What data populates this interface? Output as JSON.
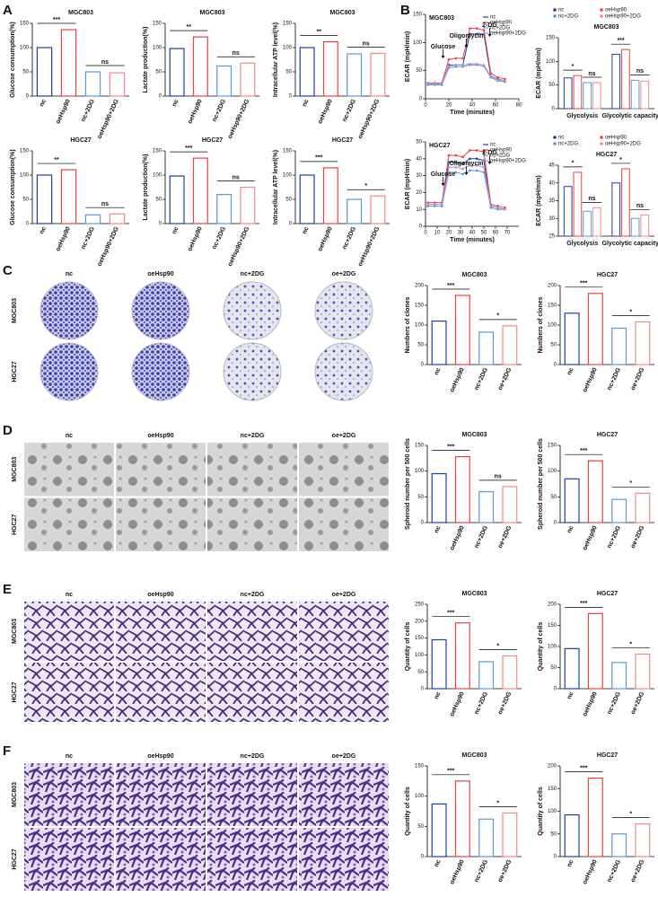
{
  "panel_letters": [
    "A",
    "B",
    "C",
    "D",
    "E",
    "F"
  ],
  "image_panels": [
    {
      "columns": [
        "nc",
        "oeHsp90",
        "nc+2DG",
        "oe+2DG"
      ],
      "rows": [
        "MGC803",
        "HGC27"
      ]
    },
    {
      "columns": [
        "nc",
        "oeHsp90",
        "nc+2DG",
        "oe+2DG"
      ],
      "rows": [
        "MGC803",
        "HGC27"
      ]
    },
    {
      "columns": [
        "nc",
        "oeHsp90",
        "nc+2DG",
        "oe+2DG"
      ],
      "rows": [
        "MGC803",
        "HGC27"
      ]
    },
    {
      "columns": [
        "nc",
        "oeHsp90",
        "nc+2DG",
        "oe+2DG"
      ],
      "rows": [
        "MGC803",
        "HGC27"
      ]
    }
  ],
  "chart_data": [
    {
      "type": "bar",
      "title": "MGC803",
      "ylabel": "Glucose consumption(%)",
      "categories": [
        "nc",
        "oeHsp90",
        "nc+2DG",
        "oeHsp90+2DG"
      ],
      "values": [
        100,
        137,
        50,
        48
      ],
      "colors": [
        "#1f3f9e",
        "#e8423f",
        "#5b9bd5",
        "#f08a8a"
      ],
      "ylim": [
        0,
        150
      ],
      "yticks": [
        0,
        50,
        100,
        150
      ],
      "significance": [
        "***",
        "ns"
      ]
    },
    {
      "type": "bar",
      "title": "MGC803",
      "ylabel": "Lactate production(%)",
      "categories": [
        "nc",
        "oeHsp90",
        "nc+2DG",
        "oeHsp90+2DG"
      ],
      "values": [
        98,
        122,
        62,
        68
      ],
      "colors": [
        "#1f3f9e",
        "#e8423f",
        "#5b9bd5",
        "#f08a8a"
      ],
      "ylim": [
        0,
        150
      ],
      "yticks": [
        0,
        50,
        100,
        150
      ],
      "significance": [
        "**",
        "ns"
      ]
    },
    {
      "type": "bar",
      "title": "MGC803",
      "ylabel": "Intracellular ATP level(%)",
      "categories": [
        "nc",
        "oeHsp90",
        "nc+2DG",
        "oeHsp90+2DG"
      ],
      "values": [
        100,
        112,
        87,
        88
      ],
      "colors": [
        "#1f3f9e",
        "#e8423f",
        "#5b9bd5",
        "#f08a8a"
      ],
      "ylim": [
        0,
        150
      ],
      "yticks": [
        0,
        50,
        100,
        150
      ],
      "significance": [
        "**",
        "ns"
      ]
    },
    {
      "type": "bar",
      "title": "HGC27",
      "ylabel": "Glucose consumption(%)",
      "categories": [
        "nc",
        "oeHsp90",
        "nc+2DG",
        "oeHsp90+2DG"
      ],
      "values": [
        100,
        111,
        18,
        20
      ],
      "colors": [
        "#1f3f9e",
        "#e8423f",
        "#5b9bd5",
        "#f08a8a"
      ],
      "ylim": [
        0,
        150
      ],
      "yticks": [
        0,
        50,
        100,
        150
      ],
      "significance": [
        "**",
        "ns"
      ]
    },
    {
      "type": "bar",
      "title": "HGC27",
      "ylabel": "Lactate production(%)",
      "categories": [
        "nc",
        "oeHsp90",
        "nc+2DG",
        "oeHsp90+2DG"
      ],
      "values": [
        98,
        135,
        60,
        75
      ],
      "colors": [
        "#1f3f9e",
        "#e8423f",
        "#5b9bd5",
        "#f08a8a"
      ],
      "ylim": [
        0,
        150
      ],
      "yticks": [
        0,
        50,
        100,
        150
      ],
      "significance": [
        "***",
        "ns"
      ]
    },
    {
      "type": "bar",
      "title": "HGC27",
      "ylabel": "Intracellular ATP level(%)",
      "categories": [
        "nc",
        "oeHsp90",
        "nc+2DG",
        "oeHsp90+2DG"
      ],
      "values": [
        100,
        115,
        50,
        57
      ],
      "colors": [
        "#1f3f9e",
        "#e8423f",
        "#5b9bd5",
        "#f08a8a"
      ],
      "ylim": [
        0,
        150
      ],
      "yticks": [
        0,
        50,
        100,
        150
      ],
      "significance": [
        "***",
        "*"
      ]
    },
    {
      "type": "line",
      "title": "MGC803",
      "ylabel": "ECAR (mpH/min)",
      "xlabel": "Time (minutes)",
      "x": [
        2,
        8,
        14,
        20,
        26,
        32,
        38,
        44,
        50,
        56,
        62,
        68
      ],
      "xlim": [
        0,
        80
      ],
      "xticks": [
        0,
        20,
        40,
        60,
        80
      ],
      "ylim": [
        0,
        150
      ],
      "yticks": [
        0,
        50,
        100,
        150
      ],
      "series": [
        {
          "name": "nc",
          "color": "#1f3f9e",
          "values": [
            25,
            25,
            25,
            60,
            60,
            60,
            115,
            115,
            115,
            40,
            35,
            32
          ]
        },
        {
          "name": "oeHsp90",
          "color": "#e8423f",
          "values": [
            28,
            28,
            28,
            70,
            72,
            72,
            125,
            125,
            122,
            45,
            38,
            35
          ]
        },
        {
          "name": "nc+2DG",
          "color": "#5b9bd5",
          "values": [
            25,
            25,
            25,
            55,
            57,
            57,
            60,
            60,
            58,
            38,
            32,
            30
          ]
        },
        {
          "name": "oeHsp90+2DG",
          "color": "#b48fd6",
          "values": [
            27,
            27,
            27,
            58,
            60,
            60,
            62,
            62,
            60,
            40,
            34,
            32
          ]
        }
      ],
      "events": [
        {
          "label": "Glucose",
          "x": 15
        },
        {
          "label": "Oligomycin",
          "x": 35
        },
        {
          "label": "2-DG",
          "x": 55
        }
      ]
    },
    {
      "type": "grouped_bar",
      "title": "MGC803",
      "ylabel": "ECAR (mpH/min)",
      "categories": [
        "Glycolysis",
        "Glycolytic capacity"
      ],
      "ylim": [
        0,
        150
      ],
      "yticks": [
        0,
        50,
        100,
        150
      ],
      "series": [
        {
          "name": "nc",
          "color": "#1f3f9e",
          "values": [
            65,
            115
          ]
        },
        {
          "name": "oeHsp90",
          "color": "#e8423f",
          "values": [
            70,
            125
          ]
        },
        {
          "name": "nc+2DG",
          "color": "#5b9bd5",
          "values": [
            55,
            60
          ]
        },
        {
          "name": "oeHsp90+2DG",
          "color": "#f08a8a",
          "values": [
            55,
            58
          ]
        }
      ],
      "significance": [
        "*",
        "ns",
        "***",
        "ns"
      ]
    },
    {
      "type": "line",
      "title": "HGC27",
      "ylabel": "ECAR (mpH/min)",
      "xlabel": "Time (minutes)",
      "x": [
        2,
        8,
        14,
        20,
        26,
        32,
        38,
        44,
        50,
        56,
        62,
        68
      ],
      "xlim": [
        0,
        80
      ],
      "xticks": [
        0,
        10,
        20,
        30,
        40,
        50,
        60,
        70
      ],
      "ylim": [
        0,
        50
      ],
      "yticks": [
        0,
        10,
        20,
        30,
        40,
        50
      ],
      "series": [
        {
          "name": "nc",
          "color": "#1f3f9e",
          "values": [
            12,
            12,
            12,
            38,
            38,
            37,
            40,
            40,
            39,
            12,
            11,
            10
          ]
        },
        {
          "name": "oeHsp90",
          "color": "#e8423f",
          "values": [
            14,
            14,
            14,
            42,
            42,
            41,
            45,
            45,
            44,
            13,
            12,
            11
          ]
        },
        {
          "name": "nc+2DG",
          "color": "#5b9bd5",
          "values": [
            12,
            12,
            12,
            32,
            32,
            31,
            33,
            33,
            32,
            11,
            10,
            10
          ]
        },
        {
          "name": "oeHsp90+2DG",
          "color": "#b48fd6",
          "values": [
            13,
            13,
            13,
            35,
            35,
            34,
            36,
            36,
            35,
            12,
            11,
            10
          ]
        }
      ],
      "events": [
        {
          "label": "Glucose",
          "x": 15
        },
        {
          "label": "Oligomycin",
          "x": 35
        },
        {
          "label": "2-DG",
          "x": 55
        }
      ]
    },
    {
      "type": "grouped_bar",
      "title": "HGC27",
      "ylabel": "ECAR (mpH/min)",
      "categories": [
        "Glycolysis",
        "Glycolytic capacity"
      ],
      "ylim": [
        25,
        45
      ],
      "yticks": [
        25,
        30,
        35,
        40,
        45
      ],
      "series": [
        {
          "name": "nc",
          "color": "#1f3f9e",
          "values": [
            39,
            40
          ]
        },
        {
          "name": "oeHsp90",
          "color": "#e8423f",
          "values": [
            43,
            44
          ]
        },
        {
          "name": "nc+2DG",
          "color": "#5b9bd5",
          "values": [
            32,
            30
          ]
        },
        {
          "name": "oeHsp90+2DG",
          "color": "#f08a8a",
          "values": [
            33,
            31
          ]
        }
      ],
      "significance": [
        "*",
        "ns",
        "*",
        "ns"
      ]
    },
    {
      "type": "bar",
      "title": "MGC803",
      "ylabel": "Numbers of clones",
      "categories": [
        "nc",
        "oeHsp90",
        "nc+2DG",
        "oe+2DG"
      ],
      "values": [
        110,
        175,
        82,
        98
      ],
      "colors": [
        "#1f3f9e",
        "#e8423f",
        "#5b9bd5",
        "#f08a8a"
      ],
      "ylim": [
        0,
        200
      ],
      "yticks": [
        0,
        50,
        100,
        150,
        200
      ],
      "significance": [
        "***",
        "*"
      ]
    },
    {
      "type": "bar",
      "title": "HGC27",
      "ylabel": "Numbers of clones",
      "categories": [
        "nc",
        "oeHsp90",
        "nc+2DG",
        "oe+2DG"
      ],
      "values": [
        130,
        180,
        92,
        108
      ],
      "colors": [
        "#1f3f9e",
        "#e8423f",
        "#5b9bd5",
        "#f08a8a"
      ],
      "ylim": [
        0,
        200
      ],
      "yticks": [
        0,
        50,
        100,
        150,
        200
      ],
      "significance": [
        "***",
        "*"
      ]
    },
    {
      "type": "bar",
      "title": "MGC803",
      "ylabel": "Spheroid number per 500 cells",
      "categories": [
        "nc",
        "oeHsp90",
        "nc+2DG",
        "oe+2DG"
      ],
      "values": [
        95,
        128,
        60,
        70
      ],
      "colors": [
        "#1f3f9e",
        "#e8423f",
        "#5b9bd5",
        "#f08a8a"
      ],
      "ylim": [
        0,
        150
      ],
      "yticks": [
        0,
        50,
        100,
        150
      ],
      "significance": [
        "***",
        "ns"
      ]
    },
    {
      "type": "bar",
      "title": "HGC27",
      "ylabel": "Spheroid number per 500 cells",
      "categories": [
        "nc",
        "oeHsp90",
        "nc+2DG",
        "oe+2DG"
      ],
      "values": [
        85,
        120,
        45,
        57
      ],
      "colors": [
        "#1f3f9e",
        "#e8423f",
        "#5b9bd5",
        "#f08a8a"
      ],
      "ylim": [
        0,
        150
      ],
      "yticks": [
        0,
        50,
        100,
        150
      ],
      "significance": [
        "***",
        "*"
      ]
    },
    {
      "type": "bar",
      "title": "MGC803",
      "ylabel": "Quantity of cells",
      "categories": [
        "nc",
        "oeHsp90",
        "nc+2DG",
        "oe+2DG"
      ],
      "values": [
        145,
        195,
        80,
        97
      ],
      "colors": [
        "#1f3f9e",
        "#e8423f",
        "#5b9bd5",
        "#f08a8a"
      ],
      "ylim": [
        0,
        250
      ],
      "yticks": [
        0,
        50,
        100,
        150,
        200,
        250
      ],
      "significance": [
        "***",
        "*"
      ]
    },
    {
      "type": "bar",
      "title": "HGC27",
      "ylabel": "Quantity of cells",
      "categories": [
        "nc",
        "oeHsp90",
        "nc+2DG",
        "oe+2DG"
      ],
      "values": [
        95,
        178,
        62,
        82
      ],
      "colors": [
        "#1f3f9e",
        "#e8423f",
        "#5b9bd5",
        "#f08a8a"
      ],
      "ylim": [
        0,
        200
      ],
      "yticks": [
        0,
        50,
        100,
        150,
        200
      ],
      "significance": [
        "***",
        "*"
      ]
    },
    {
      "type": "bar",
      "title": "MGC803",
      "ylabel": "Quantity of cells",
      "categories": [
        "nc",
        "oeHsp90",
        "nc+2DG",
        "oe+2DG"
      ],
      "values": [
        87,
        125,
        62,
        72
      ],
      "colors": [
        "#1f3f9e",
        "#e8423f",
        "#5b9bd5",
        "#f08a8a"
      ],
      "ylim": [
        0,
        150
      ],
      "yticks": [
        0,
        50,
        100,
        150
      ],
      "significance": [
        "***",
        "*"
      ]
    },
    {
      "type": "bar",
      "title": "HGC27",
      "ylabel": "Quantity of cells",
      "categories": [
        "nc",
        "oeHsp90",
        "nc+2DG",
        "oe+2DG"
      ],
      "values": [
        92,
        173,
        50,
        72
      ],
      "colors": [
        "#1f3f9e",
        "#e8423f",
        "#5b9bd5",
        "#f08a8a"
      ],
      "ylim": [
        0,
        200
      ],
      "yticks": [
        0,
        50,
        100,
        150,
        200
      ],
      "significance": [
        "***",
        "*"
      ]
    }
  ]
}
